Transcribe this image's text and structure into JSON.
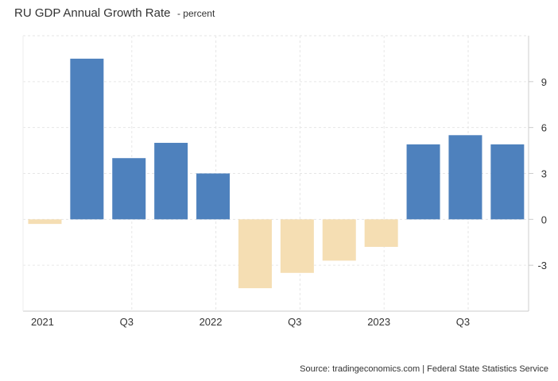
{
  "header": {
    "title": "RU GDP Annual Growth Rate",
    "subtitle": "- percent"
  },
  "footer": {
    "source": "Source: tradingeconomics.com | Federal State Statistics Service"
  },
  "chart_data": {
    "type": "bar",
    "title": "RU GDP Annual Growth Rate",
    "subtitle": "- percent",
    "xlabel": "",
    "ylabel": "",
    "categories": [
      "2021 Q1",
      "2021 Q2",
      "2021 Q3",
      "2021 Q4",
      "2022 Q1",
      "2022 Q2",
      "2022 Q3",
      "2022 Q4",
      "2023 Q1",
      "2023 Q2",
      "2023 Q3",
      "2023 Q4"
    ],
    "values": [
      -0.3,
      10.5,
      4.0,
      5.0,
      3.0,
      -4.5,
      -3.5,
      -2.7,
      -1.8,
      4.9,
      5.5,
      4.9
    ],
    "x_tick_labels": [
      {
        "index": 0,
        "label": "2021"
      },
      {
        "index": 2,
        "label": "Q3"
      },
      {
        "index": 4,
        "label": "2022"
      },
      {
        "index": 6,
        "label": "Q3"
      },
      {
        "index": 8,
        "label": "2023"
      },
      {
        "index": 10,
        "label": "Q3"
      }
    ],
    "y_ticks": [
      -3,
      0,
      3,
      6,
      9
    ],
    "ylim": [
      -6,
      12
    ],
    "grid": true,
    "y_axis_side": "right",
    "colors": {
      "positive": "#4e81bd",
      "negative": "#f5deb3",
      "grid": "#e6e6e6",
      "axis": "#cccccc"
    }
  }
}
